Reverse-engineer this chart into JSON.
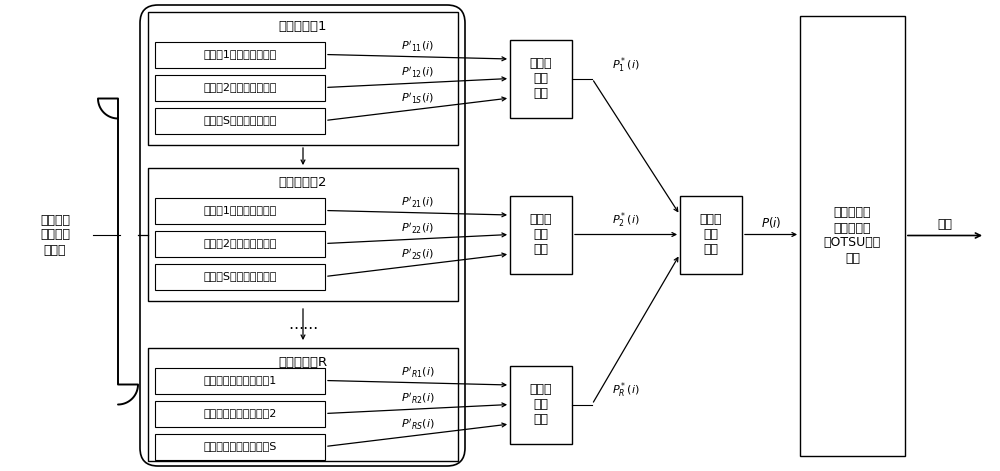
{
  "bg_color": "#ffffff",
  "line_color": "#000000",
  "text_color": "#000000",
  "left_label": "目标与背\n景交界类\n型子图",
  "group1_title": "图像块分组1",
  "group2_title": "图像块分组2",
  "group3_title": "图像块分组R",
  "group1_boxes": [
    "图像块1灰度直方图统计",
    "图像块2灰度直方图统计",
    "图像块S灰度直方图统计"
  ],
  "group2_boxes": [
    "图像块1灰度直方图统计",
    "图像块2灰度直方图统计",
    "图像块S灰度直方图统计"
  ],
  "group3_boxes": [
    "像素灰度统计处理单元1",
    "像素灰度统计处理单元2",
    "像素灰度统计处理单元S"
  ],
  "avg_box_text": "加和求\n平均\n单元",
  "sum_avg_text": "加和求\n平均\n单元",
  "otsu_text": "目标区域及\n背景区域交\n界OTSU阈值\n求解",
  "final_label": "阈值",
  "dots": "……"
}
